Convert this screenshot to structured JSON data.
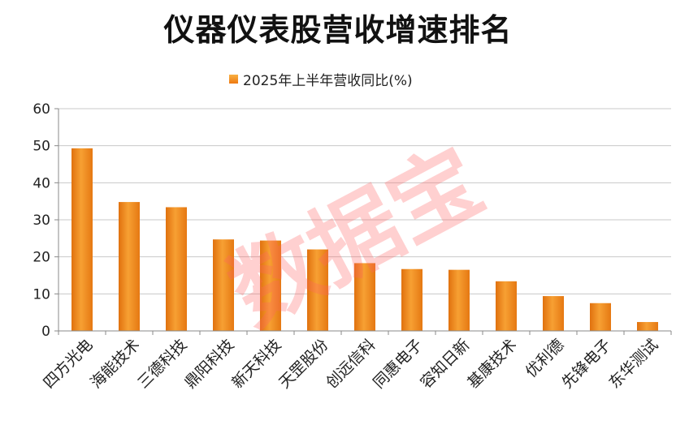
{
  "chart_data": {
    "type": "bar",
    "title": "仪器仪表股营收增速排名",
    "legend": {
      "label": "2025年上半年营收同比(%)",
      "position": "top"
    },
    "categories": [
      "四方光电",
      "海能技术",
      "三德科技",
      "鼎阳科技",
      "新天科技",
      "天罡股份",
      "创远信科",
      "同惠电子",
      "容知日新",
      "基康技术",
      "优利德",
      "先锋电子",
      "东华测试"
    ],
    "series": [
      {
        "name": "2025年上半年营收同比(%)",
        "values": [
          49.3,
          34.8,
          33.4,
          24.7,
          24.4,
          22.0,
          18.3,
          16.7,
          16.5,
          13.4,
          9.4,
          7.5,
          2.4
        ]
      }
    ],
    "ylim": [
      0,
      60
    ],
    "yticks": [
      0,
      10,
      20,
      30,
      40,
      50,
      60
    ],
    "grid": true,
    "bar_color": "#f28c1f"
  },
  "watermark": "数据宝"
}
